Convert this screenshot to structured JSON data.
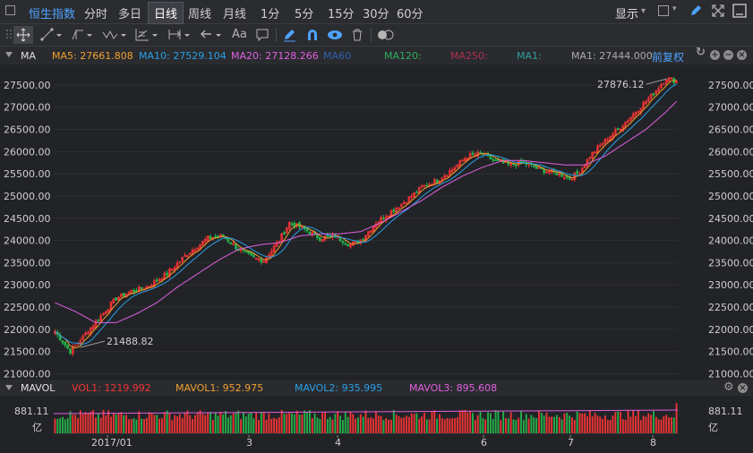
{
  "header": {
    "title": "恒生指数",
    "tabs": [
      "分时",
      "多日",
      "日线",
      "周线",
      "月线",
      "1分",
      "5分",
      "15分",
      "30分",
      "60分"
    ],
    "active_tab": "日线",
    "display_label": "显示",
    "display_caret": "▾"
  },
  "toolbar": {
    "text_tool": "Aa",
    "tools": [
      "crosshair-tool",
      "line-tool",
      "polyline-tool",
      "wave-tool",
      "fib-tool",
      "measure-tool",
      "arrow-tool",
      "text-tool",
      "comment-tool",
      "pen-tool",
      "magnet-tool",
      "eye-tool",
      "trash-tool",
      "toggle-tool"
    ]
  },
  "indicator_bar": {
    "name": "MA",
    "ma5": "MA5: 27661.808",
    "ma10": "MA10: 27529.104",
    "ma20": "MA20: 27128.266",
    "ma60": "MA60",
    "ma120": "MA120:",
    "ma250": "MA250:",
    "ma_a": "MA1:",
    "ma_b": "MA1: 27444.000",
    "adjust": "前复权"
  },
  "volume_bar": {
    "name": "MAVOL",
    "vol1": "VOL1: 1219.992",
    "mavol1": "MAVOL1: 952.975",
    "mavol2": "MAVOL2: 935.995",
    "mavol3": "MAVOL3: 895.608"
  },
  "colors": {
    "up": "#f03434",
    "down": "#24b24a",
    "ma5": "#f0a030",
    "ma10": "#28a0e6",
    "ma20": "#e060e0",
    "accent": "#4da3ff"
  },
  "chart_data": {
    "type": "candlestick",
    "price_axis_ticks": [
      "27500.00",
      "27000.00",
      "26500.00",
      "26000.00",
      "25500.00",
      "25000.00",
      "24500.00",
      "24000.00",
      "23500.00",
      "23000.00",
      "22500.00",
      "22000.00",
      "21500.00",
      "21000.00"
    ],
    "ylim": [
      20950,
      27900
    ],
    "annotations": {
      "high": "27876.12",
      "low": "21488.82"
    },
    "months": [
      "2017/01",
      "3",
      "4",
      "6",
      "7",
      "8"
    ],
    "volume_axis": {
      "value": "881.11",
      "unit": "亿"
    },
    "close_anchors": [
      [
        0,
        21950
      ],
      [
        6,
        21500
      ],
      [
        12,
        21900
      ],
      [
        18,
        22300
      ],
      [
        24,
        22700
      ],
      [
        30,
        22850
      ],
      [
        36,
        22950
      ],
      [
        44,
        23250
      ],
      [
        52,
        23700
      ],
      [
        60,
        24050
      ],
      [
        66,
        24100
      ],
      [
        72,
        23800
      ],
      [
        78,
        23600
      ],
      [
        82,
        23550
      ],
      [
        88,
        24000
      ],
      [
        92,
        24400
      ],
      [
        98,
        24250
      ],
      [
        104,
        24050
      ],
      [
        110,
        24100
      ],
      [
        116,
        23900
      ],
      [
        120,
        24000
      ],
      [
        126,
        24400
      ],
      [
        132,
        24650
      ],
      [
        138,
        24900
      ],
      [
        144,
        25200
      ],
      [
        150,
        25350
      ],
      [
        156,
        25600
      ],
      [
        162,
        25900
      ],
      [
        168,
        25950
      ],
      [
        172,
        25800
      ],
      [
        178,
        25700
      ],
      [
        184,
        25750
      ],
      [
        190,
        25600
      ],
      [
        194,
        25550
      ],
      [
        198,
        25500
      ],
      [
        202,
        25400
      ],
      [
        206,
        25550
      ],
      [
        210,
        25900
      ],
      [
        216,
        26250
      ],
      [
        222,
        26550
      ],
      [
        228,
        26900
      ],
      [
        234,
        27250
      ],
      [
        240,
        27650
      ],
      [
        244,
        27580
      ]
    ],
    "ma20_anchors": [
      [
        0,
        22600
      ],
      [
        8,
        22400
      ],
      [
        16,
        22150
      ],
      [
        24,
        22150
      ],
      [
        32,
        22350
      ],
      [
        40,
        22600
      ],
      [
        48,
        22950
      ],
      [
        56,
        23250
      ],
      [
        64,
        23550
      ],
      [
        72,
        23800
      ],
      [
        80,
        23900
      ],
      [
        88,
        23950
      ],
      [
        96,
        24100
      ],
      [
        104,
        24150
      ],
      [
        112,
        24150
      ],
      [
        120,
        24200
      ],
      [
        128,
        24400
      ],
      [
        136,
        24650
      ],
      [
        144,
        24900
      ],
      [
        152,
        25200
      ],
      [
        160,
        25450
      ],
      [
        168,
        25650
      ],
      [
        176,
        25800
      ],
      [
        184,
        25800
      ],
      [
        192,
        25750
      ],
      [
        200,
        25700
      ],
      [
        208,
        25700
      ],
      [
        216,
        25900
      ],
      [
        224,
        26200
      ],
      [
        232,
        26500
      ],
      [
        240,
        26900
      ],
      [
        244,
        27130
      ]
    ],
    "volume_level": 0.82
  }
}
